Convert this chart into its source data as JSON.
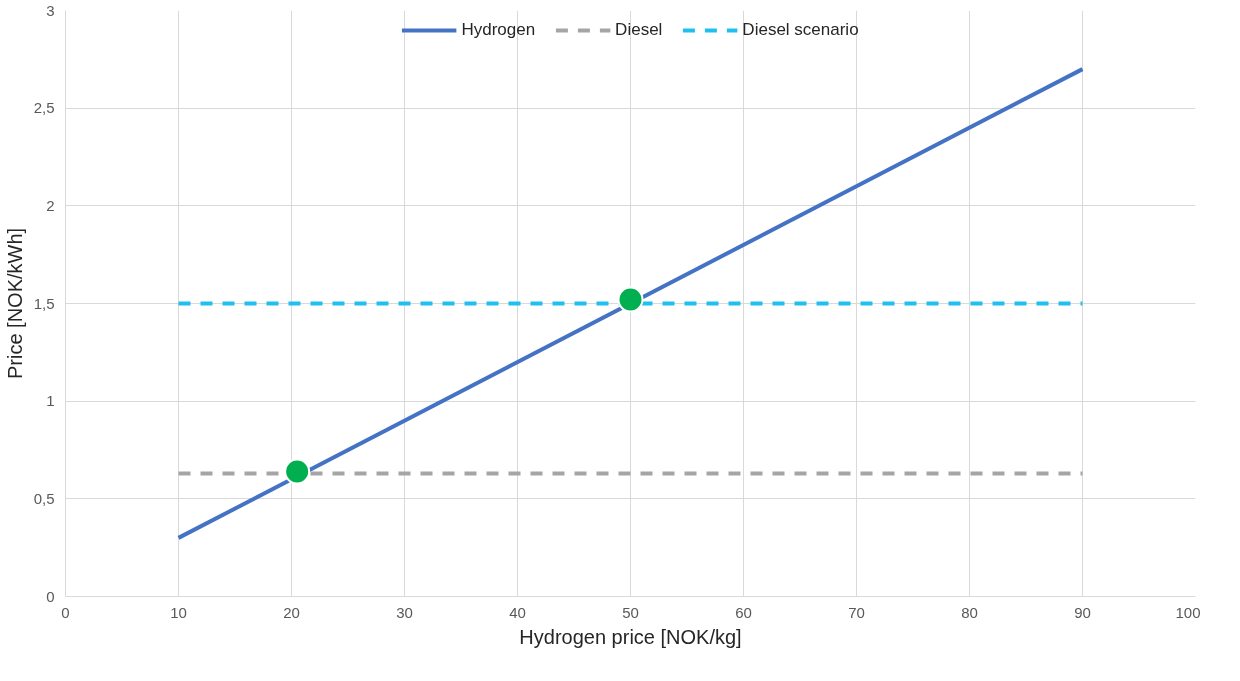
{
  "chart_data": {
    "type": "line",
    "xlabel": "Hydrogen price [NOK/kg]",
    "ylabel": "Price [NOK/kWh]",
    "xlim": [
      0,
      100
    ],
    "ylim": [
      0,
      3
    ],
    "xticks": [
      0,
      10,
      20,
      30,
      40,
      50,
      60,
      70,
      80,
      90,
      100
    ],
    "yticks": [
      0,
      {
        "value": 0.5,
        "label": "0,5"
      },
      1,
      {
        "value": 1.5,
        "label": "1,5"
      },
      2,
      {
        "value": 2.5,
        "label": "2,5"
      },
      3
    ],
    "grid": true,
    "legend": "top",
    "marker": "none",
    "series": [
      {
        "name": "Hydrogen",
        "color": "#4472c4",
        "x": [
          10,
          90
        ],
        "values": [
          0.3,
          2.7
        ],
        "line_style": "solid"
      },
      {
        "name": "Diesel",
        "color": "#a5a5a5",
        "x": [
          10,
          90
        ],
        "values": [
          0.63,
          0.63
        ],
        "line_style": "dashed"
      },
      {
        "name": "Diesel scenario",
        "color": "#1fbff0",
        "x": [
          10,
          90
        ],
        "values": [
          1.5,
          1.5
        ],
        "line_style": "dashed"
      },
      {
        "type": "scatter",
        "color": "#00b050",
        "x": [
          20.5,
          50
        ],
        "values": [
          0.64,
          1.52
        ],
        "marker": "circle"
      }
    ]
  }
}
